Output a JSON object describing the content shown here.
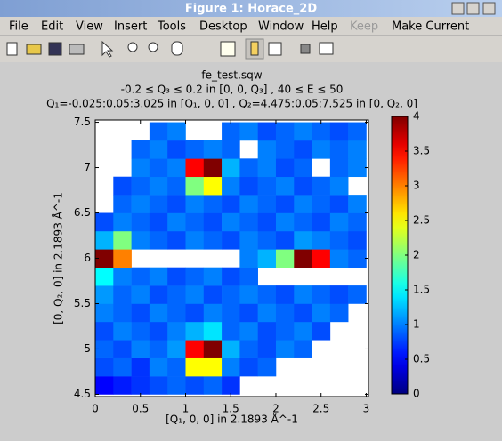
{
  "window": {
    "title": "Figure 1: Horace_2D",
    "menu": [
      "File",
      "Edit",
      "View",
      "Insert",
      "Tools",
      "Desktop",
      "Window",
      "Help",
      "Keep",
      "Make Current"
    ]
  },
  "chart_data": {
    "type": "heatmap",
    "title": [
      "fe_test.sqw",
      "-0.2 ≤ Q₃ ≤ 0.2 in [0, 0, Q₃] , 40 ≤ E ≤ 50",
      "Q₁=-0.025:0.05:3.025 in [Q₁, 0, 0] , Q₂=4.475:0.05:7.525 in [0, Q₂, 0]"
    ],
    "x_label": "[Q₁, 0, 0] in 2.1893 Å^-1",
    "y_label": "[0, Q₂, 0] in 2.1893 Å^-1",
    "x": [
      0.1,
      0.3,
      0.5,
      0.7,
      0.9,
      1.1,
      1.3,
      1.5,
      1.7,
      1.9,
      2.1,
      2.3,
      2.5,
      2.7,
      2.9
    ],
    "y": [
      4.6,
      4.8,
      5.0,
      5.2,
      5.4,
      5.6,
      5.8,
      6.0,
      6.2,
      6.4,
      6.6,
      6.8,
      7.0,
      7.2,
      7.4
    ],
    "z": [
      [
        0.5,
        0.6,
        0.7,
        0.8,
        0.9,
        0.8,
        0.9,
        0.7,
        null,
        null,
        null,
        null,
        null,
        null,
        null
      ],
      [
        0.8,
        0.9,
        0.7,
        1.0,
        0.9,
        2.5,
        2.5,
        1.0,
        0.8,
        0.9,
        null,
        null,
        null,
        null,
        null
      ],
      [
        0.9,
        0.8,
        1.0,
        0.9,
        1.1,
        3.5,
        4,
        1.2,
        0.9,
        0.8,
        1.0,
        0.9,
        null,
        null,
        null
      ],
      [
        0.8,
        1.0,
        0.9,
        0.8,
        1.0,
        1.2,
        1.4,
        0.9,
        1.0,
        0.8,
        0.9,
        1.0,
        0.8,
        null,
        null
      ],
      [
        1.0,
        0.9,
        0.8,
        1.0,
        0.9,
        0.8,
        1.0,
        0.9,
        0.8,
        1.0,
        0.9,
        0.8,
        1.0,
        0.9,
        null
      ],
      [
        1.1,
        0.9,
        1.0,
        0.8,
        0.9,
        1.0,
        0.8,
        0.9,
        1.0,
        0.9,
        0.8,
        1.0,
        0.9,
        0.8,
        0.9
      ],
      [
        1.5,
        1.0,
        0.9,
        1.0,
        0.8,
        0.9,
        1.0,
        0.8,
        0.9,
        null,
        null,
        null,
        null,
        null,
        null
      ],
      [
        4,
        3,
        null,
        null,
        null,
        null,
        null,
        null,
        1.0,
        1.2,
        2,
        4,
        3.5,
        1.0,
        0.9
      ],
      [
        1.2,
        2,
        1.0,
        0.9,
        0.8,
        1.0,
        0.9,
        0.8,
        1.0,
        0.9,
        0.8,
        1.1,
        1.0,
        0.9,
        0.8
      ],
      [
        0.8,
        1.0,
        0.9,
        0.8,
        1.0,
        0.9,
        0.8,
        1.0,
        0.9,
        0.8,
        1.0,
        0.9,
        0.8,
        1.0,
        0.9
      ],
      [
        null,
        0.9,
        1.0,
        0.9,
        0.8,
        1.0,
        0.9,
        0.8,
        1.0,
        0.9,
        0.8,
        1.0,
        0.9,
        0.8,
        1.0
      ],
      [
        null,
        0.8,
        0.9,
        1.0,
        0.9,
        2,
        2.5,
        1.0,
        0.8,
        0.9,
        1.0,
        0.8,
        0.9,
        1.0,
        null
      ],
      [
        null,
        null,
        1.0,
        0.9,
        1.0,
        3.5,
        4,
        1.2,
        0.9,
        1.0,
        0.8,
        0.9,
        null,
        0.9,
        1.0
      ],
      [
        null,
        null,
        0.9,
        1.0,
        0.8,
        0.9,
        1.0,
        0.9,
        null,
        1.0,
        0.9,
        0.8,
        1.0,
        0.9,
        1.0
      ],
      [
        null,
        null,
        null,
        0.9,
        1.0,
        null,
        null,
        0.9,
        1.0,
        0.8,
        0.9,
        1.0,
        0.9,
        0.8,
        0.9
      ]
    ],
    "xlim": [
      0,
      3.025
    ],
    "ylim": [
      4.475,
      7.525
    ],
    "xticks": [
      0,
      0.5,
      1,
      1.5,
      2,
      2.5,
      3
    ],
    "yticks": [
      4.5,
      5,
      5.5,
      6,
      6.5,
      7,
      7.5
    ],
    "colormap": "jet",
    "clim": [
      0,
      4
    ],
    "cticks": [
      0,
      0.5,
      1,
      1.5,
      2,
      2.5,
      3,
      3.5,
      4
    ]
  }
}
